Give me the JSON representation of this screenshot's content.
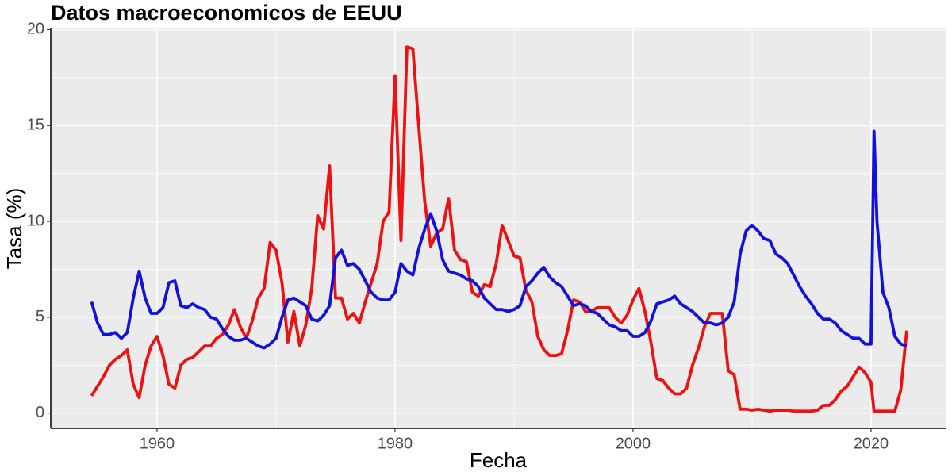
{
  "chart_data": {
    "type": "line",
    "title": "Datos macroeconomicos de EEUU",
    "x_label": "Fecha",
    "y_label": "Tasa (%)",
    "x": [
      1954.5,
      1955,
      1955.5,
      1956,
      1956.5,
      1957,
      1957.5,
      1958,
      1958.5,
      1959,
      1959.5,
      1960,
      1960.5,
      1961,
      1961.5,
      1962,
      1962.5,
      1963,
      1963.5,
      1964,
      1964.5,
      1965,
      1965.5,
      1966,
      1966.5,
      1967,
      1967.5,
      1968,
      1968.5,
      1969,
      1969.5,
      1970,
      1970.5,
      1971,
      1971.5,
      1972,
      1972.5,
      1973,
      1973.5,
      1974,
      1974.5,
      1975,
      1975.5,
      1976,
      1976.5,
      1977,
      1977.5,
      1978,
      1978.5,
      1979,
      1979.5,
      1980,
      1980.5,
      1981,
      1981.5,
      1982,
      1982.5,
      1983,
      1983.5,
      1984,
      1984.5,
      1985,
      1985.5,
      1986,
      1986.5,
      1987,
      1987.5,
      1988,
      1988.5,
      1989,
      1989.5,
      1990,
      1990.5,
      1991,
      1991.5,
      1992,
      1992.5,
      1993,
      1993.5,
      1994,
      1994.5,
      1995,
      1995.5,
      1996,
      1996.5,
      1997,
      1997.5,
      1998,
      1998.5,
      1999,
      1999.5,
      2000,
      2000.5,
      2001,
      2001.5,
      2002,
      2002.5,
      2003,
      2003.5,
      2004,
      2004.5,
      2005,
      2005.5,
      2006,
      2006.5,
      2007,
      2007.5,
      2008,
      2008.5,
      2009,
      2009.5,
      2010,
      2010.5,
      2011,
      2011.5,
      2012,
      2012.5,
      2013,
      2013.5,
      2014,
      2014.5,
      2015,
      2015.5,
      2016,
      2016.5,
      2017,
      2017.5,
      2018,
      2018.5,
      2019,
      2019.5,
      2020,
      2020.25,
      2020.5,
      2021,
      2021.5,
      2022,
      2022.5,
      2023
    ],
    "series": [
      {
        "color": "#ee1111",
        "values": [
          0.9,
          1.4,
          1.9,
          2.5,
          2.8,
          3.0,
          3.3,
          1.5,
          0.8,
          2.5,
          3.5,
          4.0,
          3.0,
          1.5,
          1.3,
          2.5,
          2.8,
          2.9,
          3.2,
          3.5,
          3.5,
          3.9,
          4.1,
          4.6,
          5.4,
          4.5,
          3.9,
          4.8,
          6.0,
          6.5,
          8.9,
          8.5,
          6.8,
          3.7,
          5.3,
          3.5,
          4.6,
          6.5,
          10.3,
          9.6,
          12.9,
          6.0,
          6.0,
          4.9,
          5.2,
          4.7,
          5.8,
          6.8,
          7.8,
          10.0,
          10.5,
          17.6,
          9.0,
          19.1,
          19.0,
          14.9,
          11.0,
          8.7,
          9.4,
          9.6,
          11.2,
          8.5,
          8.0,
          7.9,
          6.3,
          6.1,
          6.7,
          6.6,
          7.8,
          9.8,
          9.0,
          8.2,
          8.1,
          6.4,
          5.8,
          4.0,
          3.3,
          3.0,
          3.0,
          3.1,
          4.3,
          5.9,
          5.8,
          5.3,
          5.3,
          5.5,
          5.5,
          5.5,
          5.0,
          4.7,
          5.1,
          5.9,
          6.5,
          5.3,
          3.7,
          1.8,
          1.7,
          1.3,
          1.0,
          1.0,
          1.3,
          2.5,
          3.4,
          4.5,
          5.2,
          5.2,
          5.2,
          2.2,
          2.0,
          0.2,
          0.2,
          0.15,
          0.2,
          0.15,
          0.1,
          0.15,
          0.15,
          0.15,
          0.1,
          0.1,
          0.1,
          0.1,
          0.15,
          0.4,
          0.4,
          0.7,
          1.15,
          1.4,
          1.9,
          2.4,
          2.1,
          1.6,
          0.1,
          0.1,
          0.1,
          0.1,
          0.1,
          1.2,
          4.3
        ]
      },
      {
        "color": "#1111dd",
        "values": [
          5.8,
          4.7,
          4.1,
          4.1,
          4.2,
          3.9,
          4.2,
          6.0,
          7.4,
          6.0,
          5.2,
          5.2,
          5.5,
          6.8,
          6.9,
          5.6,
          5.5,
          5.7,
          5.5,
          5.4,
          5.0,
          4.9,
          4.4,
          4.0,
          3.8,
          3.8,
          3.9,
          3.7,
          3.5,
          3.4,
          3.6,
          3.9,
          5.0,
          5.9,
          6.0,
          5.8,
          5.6,
          4.9,
          4.8,
          5.1,
          5.6,
          8.1,
          8.5,
          7.7,
          7.8,
          7.5,
          6.9,
          6.3,
          6.0,
          5.9,
          5.9,
          6.3,
          7.8,
          7.4,
          7.2,
          8.6,
          9.6,
          10.4,
          9.5,
          8.0,
          7.4,
          7.3,
          7.2,
          7.0,
          6.9,
          6.6,
          6.0,
          5.7,
          5.4,
          5.4,
          5.3,
          5.4,
          5.6,
          6.6,
          6.9,
          7.3,
          7.6,
          7.1,
          6.8,
          6.6,
          6.1,
          5.6,
          5.7,
          5.6,
          5.3,
          5.2,
          4.9,
          4.6,
          4.5,
          4.3,
          4.3,
          4.0,
          4.0,
          4.2,
          4.8,
          5.7,
          5.8,
          5.9,
          6.1,
          5.7,
          5.5,
          5.3,
          5.0,
          4.7,
          4.7,
          4.6,
          4.7,
          5.0,
          5.8,
          8.3,
          9.5,
          9.8,
          9.5,
          9.1,
          9.0,
          8.3,
          8.1,
          7.8,
          7.2,
          6.6,
          6.1,
          5.7,
          5.2,
          4.9,
          4.9,
          4.7,
          4.3,
          4.1,
          3.9,
          3.9,
          3.6,
          3.6,
          14.7,
          10.0,
          6.3,
          5.5,
          4.0,
          3.6,
          3.5
        ]
      }
    ],
    "xlim": [
      1951.07,
      2026.27
    ],
    "xticks": [
      1960,
      1980,
      2000,
      2020
    ],
    "ylim": [
      -0.8,
      20.1
    ],
    "yticks": [
      0,
      5,
      10,
      15,
      20
    ],
    "grid": true
  }
}
